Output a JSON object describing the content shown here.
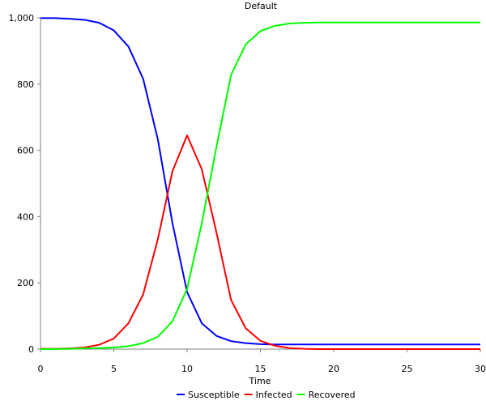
{
  "chart_data": {
    "type": "line",
    "title": "Default",
    "xlabel": "Time",
    "ylabel": "",
    "xlim": [
      0,
      30
    ],
    "ylim": [
      0,
      1000
    ],
    "xticks": [
      0,
      5,
      10,
      15,
      20,
      25,
      30
    ],
    "xtick_labels": [
      "0",
      "5",
      "10",
      "15",
      "20",
      "25",
      "30"
    ],
    "yticks": [
      0,
      200,
      400,
      600,
      800,
      1000
    ],
    "ytick_labels": [
      "0",
      "200",
      "400",
      "600",
      "800",
      "1,000"
    ],
    "grid": false,
    "legend_position": "bottom",
    "x": [
      0,
      1,
      2,
      3,
      4,
      5,
      6,
      7,
      8,
      9,
      10,
      11,
      12,
      13,
      14,
      15,
      16,
      17,
      18,
      19,
      20,
      21,
      22,
      23,
      24,
      25,
      26,
      27,
      28,
      29,
      30
    ],
    "series": [
      {
        "name": "Susceptible",
        "color": "#0000ff",
        "values": [
          999,
          999,
          997,
          994,
          985,
          962,
          913,
          816,
          634,
          380,
          172,
          78,
          40,
          24,
          18,
          15,
          14,
          14,
          14,
          14,
          14,
          14,
          14,
          14,
          14,
          14,
          14,
          14,
          14,
          14,
          14
        ]
      },
      {
        "name": "Infected",
        "color": "#ff0000",
        "values": [
          1,
          1,
          2,
          5,
          13,
          32,
          78,
          165,
          331,
          537,
          645,
          543,
          352,
          148,
          63,
          25,
          10,
          3,
          1,
          0,
          0,
          0,
          0,
          0,
          0,
          0,
          0,
          0,
          0,
          0,
          0
        ]
      },
      {
        "name": "Recovered",
        "color": "#00ff00",
        "values": [
          0,
          0,
          1,
          2,
          3,
          5,
          9,
          18,
          37,
          84,
          182,
          380,
          610,
          828,
          920,
          960,
          976,
          983,
          985,
          986,
          986,
          986,
          986,
          986,
          986,
          986,
          986,
          986,
          986,
          986,
          986
        ]
      }
    ]
  }
}
